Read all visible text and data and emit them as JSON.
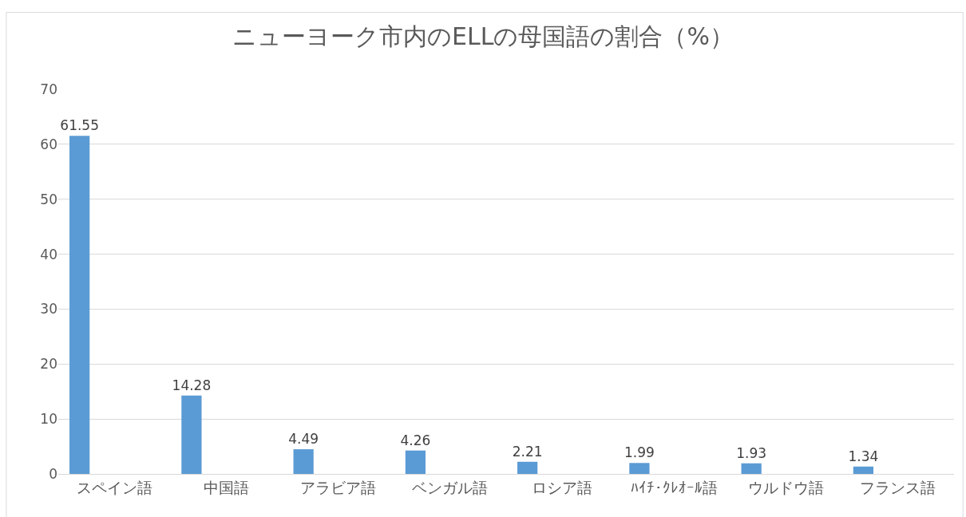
{
  "chart_data": {
    "type": "bar",
    "title": "ニューヨーク市内のELLの母国語の割合（%）",
    "categories": [
      "スペイン語",
      "中国語",
      "アラビア語",
      "ベンガル語",
      "ロシア語",
      "ﾊｲﾁ･ｸﾚｵｰﾙ語",
      "ウルドウ語",
      "フランス語"
    ],
    "values": [
      61.55,
      14.28,
      4.49,
      4.26,
      2.21,
      1.99,
      1.93,
      1.34
    ],
    "color": "#5b9bd5",
    "ylim": [
      0,
      70
    ],
    "yticks": [
      0,
      10,
      20,
      30,
      40,
      50,
      60,
      70
    ],
    "grid": "y",
    "data_labels": true
  }
}
